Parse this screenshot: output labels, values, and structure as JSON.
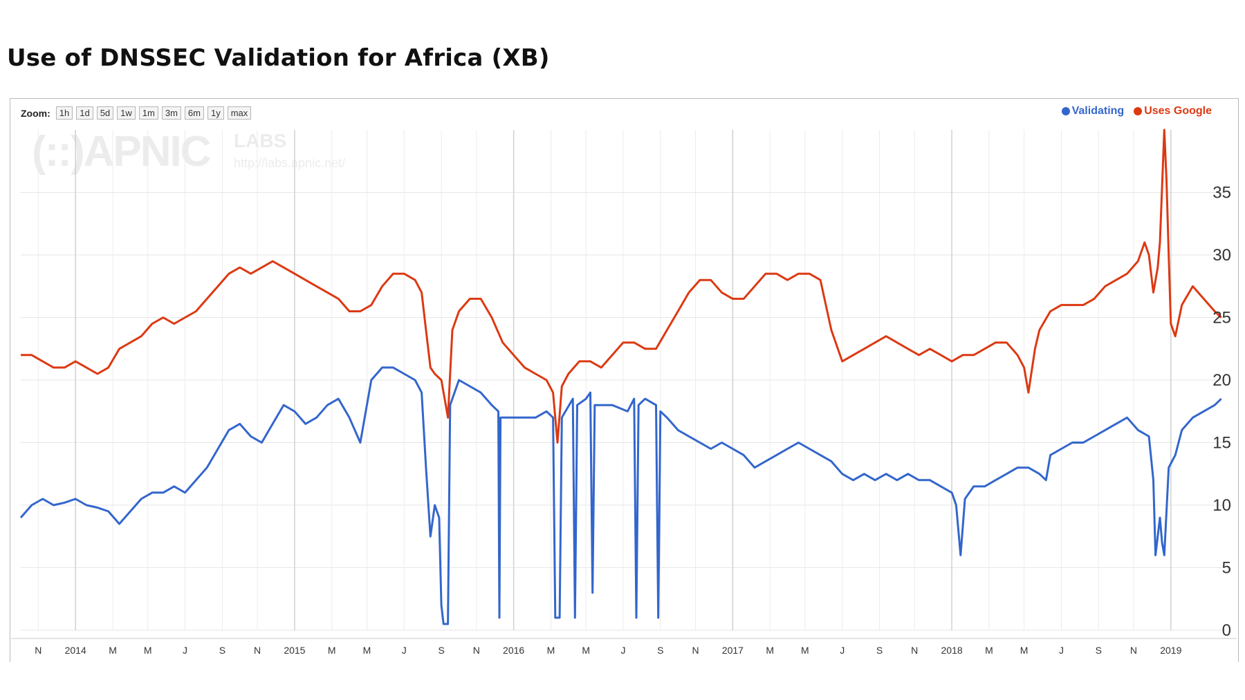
{
  "title": "Use of DNSSEC Validation for Africa (XB)",
  "zoom": {
    "label": "Zoom:",
    "buttons": [
      "1h",
      "1d",
      "5d",
      "1w",
      "1m",
      "3m",
      "6m",
      "1y",
      "max"
    ]
  },
  "watermark": {
    "logo": "(::)APNIC",
    "labs": "LABS",
    "url": "http://labs.apnic.net/"
  },
  "colors": {
    "validating": "#3366cc",
    "google": "#dc3912"
  },
  "chart_data": {
    "type": "line",
    "title": "Use of DNSSEC Validation for Africa (XB)",
    "xlabel": "",
    "ylabel": "",
    "ylim": [
      0,
      40
    ],
    "yticks": [
      0,
      5,
      10,
      15,
      20,
      25,
      30,
      35
    ],
    "y_axis_side": "right",
    "legend_position": "top-right",
    "x_range": [
      2013.75,
      2019.25
    ],
    "x_ticks": [
      {
        "t": 2013.83,
        "label": "N"
      },
      {
        "t": 2014.0,
        "label": "2014"
      },
      {
        "t": 2014.17,
        "label": "M"
      },
      {
        "t": 2014.33,
        "label": "M"
      },
      {
        "t": 2014.5,
        "label": "J"
      },
      {
        "t": 2014.67,
        "label": "S"
      },
      {
        "t": 2014.83,
        "label": "N"
      },
      {
        "t": 2015.0,
        "label": "2015"
      },
      {
        "t": 2015.17,
        "label": "M"
      },
      {
        "t": 2015.33,
        "label": "M"
      },
      {
        "t": 2015.5,
        "label": "J"
      },
      {
        "t": 2015.67,
        "label": "S"
      },
      {
        "t": 2015.83,
        "label": "N"
      },
      {
        "t": 2016.0,
        "label": "2016"
      },
      {
        "t": 2016.17,
        "label": "M"
      },
      {
        "t": 2016.33,
        "label": "M"
      },
      {
        "t": 2016.5,
        "label": "J"
      },
      {
        "t": 2016.67,
        "label": "S"
      },
      {
        "t": 2016.83,
        "label": "N"
      },
      {
        "t": 2017.0,
        "label": "2017"
      },
      {
        "t": 2017.17,
        "label": "M"
      },
      {
        "t": 2017.33,
        "label": "M"
      },
      {
        "t": 2017.5,
        "label": "J"
      },
      {
        "t": 2017.67,
        "label": "S"
      },
      {
        "t": 2017.83,
        "label": "N"
      },
      {
        "t": 2018.0,
        "label": "2018"
      },
      {
        "t": 2018.17,
        "label": "M"
      },
      {
        "t": 2018.33,
        "label": "M"
      },
      {
        "t": 2018.5,
        "label": "J"
      },
      {
        "t": 2018.67,
        "label": "S"
      },
      {
        "t": 2018.83,
        "label": "N"
      },
      {
        "t": 2019.0,
        "label": "2019"
      }
    ],
    "series": [
      {
        "name": "Validating",
        "color": "#3366cc",
        "points": [
          [
            2013.75,
            9
          ],
          [
            2013.8,
            10
          ],
          [
            2013.85,
            10.5
          ],
          [
            2013.9,
            10
          ],
          [
            2013.95,
            10.2
          ],
          [
            2014.0,
            10.5
          ],
          [
            2014.05,
            10
          ],
          [
            2014.1,
            9.8
          ],
          [
            2014.15,
            9.5
          ],
          [
            2014.2,
            8.5
          ],
          [
            2014.25,
            9.5
          ],
          [
            2014.3,
            10.5
          ],
          [
            2014.35,
            11
          ],
          [
            2014.4,
            11
          ],
          [
            2014.45,
            11.5
          ],
          [
            2014.5,
            11
          ],
          [
            2014.55,
            12
          ],
          [
            2014.6,
            13
          ],
          [
            2014.65,
            14.5
          ],
          [
            2014.7,
            16
          ],
          [
            2014.75,
            16.5
          ],
          [
            2014.8,
            15.5
          ],
          [
            2014.85,
            15
          ],
          [
            2014.9,
            16.5
          ],
          [
            2014.95,
            18
          ],
          [
            2015.0,
            17.5
          ],
          [
            2015.05,
            16.5
          ],
          [
            2015.1,
            17
          ],
          [
            2015.15,
            18
          ],
          [
            2015.2,
            18.5
          ],
          [
            2015.25,
            17
          ],
          [
            2015.3,
            15
          ],
          [
            2015.35,
            20
          ],
          [
            2015.4,
            21
          ],
          [
            2015.45,
            21
          ],
          [
            2015.5,
            20.5
          ],
          [
            2015.55,
            20
          ],
          [
            2015.58,
            19
          ],
          [
            2015.6,
            13
          ],
          [
            2015.62,
            7.5
          ],
          [
            2015.64,
            10
          ],
          [
            2015.66,
            9
          ],
          [
            2015.67,
            2
          ],
          [
            2015.68,
            0.5
          ],
          [
            2015.7,
            0.5
          ],
          [
            2015.71,
            18
          ],
          [
            2015.75,
            20
          ],
          [
            2015.8,
            19.5
          ],
          [
            2015.85,
            19
          ],
          [
            2015.9,
            18
          ],
          [
            2015.93,
            17.5
          ],
          [
            2015.935,
            1
          ],
          [
            2015.94,
            17
          ],
          [
            2016.0,
            17
          ],
          [
            2016.05,
            17
          ],
          [
            2016.1,
            17
          ],
          [
            2016.15,
            17.5
          ],
          [
            2016.18,
            17
          ],
          [
            2016.19,
            1
          ],
          [
            2016.21,
            1
          ],
          [
            2016.22,
            17
          ],
          [
            2016.27,
            18.5
          ],
          [
            2016.28,
            1
          ],
          [
            2016.29,
            18
          ],
          [
            2016.33,
            18.5
          ],
          [
            2016.35,
            19
          ],
          [
            2016.36,
            3
          ],
          [
            2016.37,
            18
          ],
          [
            2016.45,
            18
          ],
          [
            2016.52,
            17.5
          ],
          [
            2016.55,
            18.5
          ],
          [
            2016.56,
            1
          ],
          [
            2016.57,
            18
          ],
          [
            2016.6,
            18.5
          ],
          [
            2016.65,
            18
          ],
          [
            2016.66,
            1
          ],
          [
            2016.67,
            17.5
          ],
          [
            2016.7,
            17
          ],
          [
            2016.75,
            16
          ],
          [
            2016.8,
            15.5
          ],
          [
            2016.85,
            15
          ],
          [
            2016.9,
            14.5
          ],
          [
            2016.95,
            15
          ],
          [
            2017.0,
            14.5
          ],
          [
            2017.05,
            14
          ],
          [
            2017.1,
            13
          ],
          [
            2017.15,
            13.5
          ],
          [
            2017.2,
            14
          ],
          [
            2017.25,
            14.5
          ],
          [
            2017.3,
            15
          ],
          [
            2017.35,
            14.5
          ],
          [
            2017.4,
            14
          ],
          [
            2017.45,
            13.5
          ],
          [
            2017.5,
            12.5
          ],
          [
            2017.55,
            12
          ],
          [
            2017.6,
            12.5
          ],
          [
            2017.65,
            12
          ],
          [
            2017.7,
            12.5
          ],
          [
            2017.75,
            12
          ],
          [
            2017.8,
            12.5
          ],
          [
            2017.85,
            12
          ],
          [
            2017.9,
            12
          ],
          [
            2017.95,
            11.5
          ],
          [
            2018.0,
            11
          ],
          [
            2018.02,
            10
          ],
          [
            2018.04,
            6
          ],
          [
            2018.06,
            10.5
          ],
          [
            2018.1,
            11.5
          ],
          [
            2018.15,
            11.5
          ],
          [
            2018.2,
            12
          ],
          [
            2018.25,
            12.5
          ],
          [
            2018.3,
            13
          ],
          [
            2018.35,
            13
          ],
          [
            2018.4,
            12.5
          ],
          [
            2018.43,
            12
          ],
          [
            2018.45,
            14
          ],
          [
            2018.5,
            14.5
          ],
          [
            2018.55,
            15
          ],
          [
            2018.6,
            15
          ],
          [
            2018.65,
            15.5
          ],
          [
            2018.7,
            16
          ],
          [
            2018.75,
            16.5
          ],
          [
            2018.8,
            17
          ],
          [
            2018.85,
            16
          ],
          [
            2018.9,
            15.5
          ],
          [
            2018.92,
            12
          ],
          [
            2018.93,
            6
          ],
          [
            2018.95,
            9
          ],
          [
            2018.96,
            7
          ],
          [
            2018.97,
            6
          ],
          [
            2018.99,
            13
          ],
          [
            2019.02,
            14
          ],
          [
            2019.05,
            16
          ],
          [
            2019.1,
            17
          ],
          [
            2019.15,
            17.5
          ],
          [
            2019.2,
            18
          ],
          [
            2019.23,
            18.5
          ]
        ]
      },
      {
        "name": "Uses Google",
        "color": "#dc3912",
        "points": [
          [
            2013.75,
            22
          ],
          [
            2013.8,
            22
          ],
          [
            2013.85,
            21.5
          ],
          [
            2013.9,
            21
          ],
          [
            2013.95,
            21
          ],
          [
            2014.0,
            21.5
          ],
          [
            2014.05,
            21
          ],
          [
            2014.1,
            20.5
          ],
          [
            2014.15,
            21
          ],
          [
            2014.2,
            22.5
          ],
          [
            2014.25,
            23
          ],
          [
            2014.3,
            23.5
          ],
          [
            2014.35,
            24.5
          ],
          [
            2014.4,
            25
          ],
          [
            2014.45,
            24.5
          ],
          [
            2014.5,
            25
          ],
          [
            2014.55,
            25.5
          ],
          [
            2014.6,
            26.5
          ],
          [
            2014.65,
            27.5
          ],
          [
            2014.7,
            28.5
          ],
          [
            2014.75,
            29
          ],
          [
            2014.8,
            28.5
          ],
          [
            2014.85,
            29
          ],
          [
            2014.9,
            29.5
          ],
          [
            2014.95,
            29
          ],
          [
            2015.0,
            28.5
          ],
          [
            2015.05,
            28
          ],
          [
            2015.1,
            27.5
          ],
          [
            2015.15,
            27
          ],
          [
            2015.2,
            26.5
          ],
          [
            2015.25,
            25.5
          ],
          [
            2015.3,
            25.5
          ],
          [
            2015.35,
            26
          ],
          [
            2015.4,
            27.5
          ],
          [
            2015.45,
            28.5
          ],
          [
            2015.5,
            28.5
          ],
          [
            2015.55,
            28
          ],
          [
            2015.58,
            27
          ],
          [
            2015.6,
            24
          ],
          [
            2015.62,
            21
          ],
          [
            2015.64,
            20.5
          ],
          [
            2015.67,
            20
          ],
          [
            2015.69,
            18
          ],
          [
            2015.7,
            17
          ],
          [
            2015.72,
            24
          ],
          [
            2015.75,
            25.5
          ],
          [
            2015.8,
            26.5
          ],
          [
            2015.85,
            26.5
          ],
          [
            2015.9,
            25
          ],
          [
            2015.95,
            23
          ],
          [
            2016.0,
            22
          ],
          [
            2016.05,
            21
          ],
          [
            2016.1,
            20.5
          ],
          [
            2016.15,
            20
          ],
          [
            2016.18,
            19
          ],
          [
            2016.2,
            15
          ],
          [
            2016.22,
            19.5
          ],
          [
            2016.25,
            20.5
          ],
          [
            2016.3,
            21.5
          ],
          [
            2016.35,
            21.5
          ],
          [
            2016.4,
            21
          ],
          [
            2016.45,
            22
          ],
          [
            2016.5,
            23
          ],
          [
            2016.55,
            23
          ],
          [
            2016.6,
            22.5
          ],
          [
            2016.65,
            22.5
          ],
          [
            2016.7,
            24
          ],
          [
            2016.75,
            25.5
          ],
          [
            2016.8,
            27
          ],
          [
            2016.85,
            28
          ],
          [
            2016.9,
            28
          ],
          [
            2016.95,
            27
          ],
          [
            2017.0,
            26.5
          ],
          [
            2017.05,
            26.5
          ],
          [
            2017.1,
            27.5
          ],
          [
            2017.15,
            28.5
          ],
          [
            2017.2,
            28.5
          ],
          [
            2017.25,
            28
          ],
          [
            2017.3,
            28.5
          ],
          [
            2017.35,
            28.5
          ],
          [
            2017.4,
            28
          ],
          [
            2017.45,
            24
          ],
          [
            2017.5,
            21.5
          ],
          [
            2017.55,
            22
          ],
          [
            2017.6,
            22.5
          ],
          [
            2017.65,
            23
          ],
          [
            2017.7,
            23.5
          ],
          [
            2017.75,
            23
          ],
          [
            2017.8,
            22.5
          ],
          [
            2017.85,
            22
          ],
          [
            2017.9,
            22.5
          ],
          [
            2017.95,
            22
          ],
          [
            2018.0,
            21.5
          ],
          [
            2018.05,
            22
          ],
          [
            2018.1,
            22
          ],
          [
            2018.15,
            22.5
          ],
          [
            2018.2,
            23
          ],
          [
            2018.25,
            23
          ],
          [
            2018.3,
            22
          ],
          [
            2018.33,
            21
          ],
          [
            2018.35,
            19
          ],
          [
            2018.38,
            22.5
          ],
          [
            2018.4,
            24
          ],
          [
            2018.45,
            25.5
          ],
          [
            2018.5,
            26
          ],
          [
            2018.55,
            26
          ],
          [
            2018.6,
            26
          ],
          [
            2018.65,
            26.5
          ],
          [
            2018.7,
            27.5
          ],
          [
            2018.75,
            28
          ],
          [
            2018.8,
            28.5
          ],
          [
            2018.85,
            29.5
          ],
          [
            2018.88,
            31
          ],
          [
            2018.9,
            30
          ],
          [
            2018.92,
            27
          ],
          [
            2018.94,
            29
          ],
          [
            2018.95,
            31
          ],
          [
            2018.97,
            40
          ],
          [
            2018.98,
            36
          ],
          [
            2018.99,
            30
          ],
          [
            2019.0,
            24.5
          ],
          [
            2019.02,
            23.5
          ],
          [
            2019.05,
            26
          ],
          [
            2019.1,
            27.5
          ],
          [
            2019.15,
            26.5
          ],
          [
            2019.2,
            25.5
          ],
          [
            2019.23,
            25
          ]
        ]
      }
    ]
  }
}
